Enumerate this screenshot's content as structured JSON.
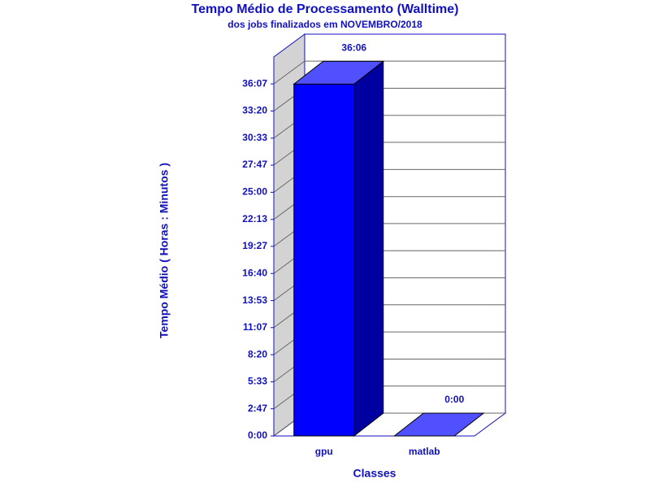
{
  "chart_data": {
    "type": "bar3d",
    "title": "Tempo Médio de Processamento (Walltime)",
    "subtitle": "dos jobs finalizados em NOVEMBRO/2018",
    "x_label": "Classes",
    "y_label": "Tempo Médio ( Horas : Minutos )",
    "categories": [
      "gpu",
      "matlab"
    ],
    "values": [
      2166,
      0
    ],
    "value_labels": [
      "36:06",
      "0:00"
    ],
    "color": "#0000ff",
    "ylim": [
      0,
      2333
    ],
    "yticks": [
      {
        "value": 0,
        "label": "0:00"
      },
      {
        "value": 167,
        "label": "2:47"
      },
      {
        "value": 333,
        "label": "5:33"
      },
      {
        "value": 500,
        "label": "8:20"
      },
      {
        "value": 667,
        "label": "11:07"
      },
      {
        "value": 833,
        "label": "13:53"
      },
      {
        "value": 1000,
        "label": "16:40"
      },
      {
        "value": 1167,
        "label": "19:27"
      },
      {
        "value": 1333,
        "label": "22:13"
      },
      {
        "value": 1500,
        "label": "25:00"
      },
      {
        "value": 1667,
        "label": "27:47"
      },
      {
        "value": 1833,
        "label": "30:33"
      },
      {
        "value": 2000,
        "label": "33:20"
      },
      {
        "value": 2167,
        "label": "36:07"
      }
    ],
    "grid": true
  }
}
